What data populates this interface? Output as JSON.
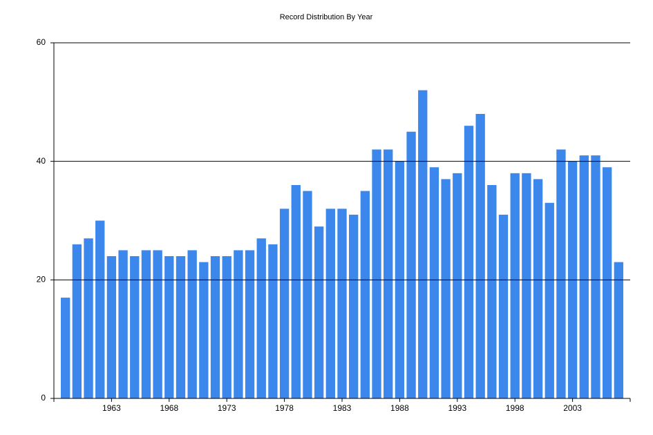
{
  "chart_data": {
    "type": "bar",
    "title": "Record Distribution By Year",
    "x": [
      1959,
      1960,
      1961,
      1962,
      1963,
      1964,
      1965,
      1966,
      1967,
      1968,
      1969,
      1970,
      1971,
      1972,
      1973,
      1974,
      1975,
      1976,
      1977,
      1978,
      1979,
      1980,
      1981,
      1982,
      1983,
      1984,
      1985,
      1986,
      1987,
      1988,
      1989,
      1990,
      1991,
      1992,
      1993,
      1994,
      1995,
      1996,
      1997,
      1998,
      1999,
      2000,
      2001,
      2002,
      2003,
      2004,
      2005,
      2006,
      2007
    ],
    "values": [
      17,
      26,
      27,
      30,
      24,
      25,
      24,
      25,
      25,
      24,
      24,
      25,
      23,
      24,
      24,
      25,
      25,
      27,
      26,
      32,
      36,
      35,
      29,
      32,
      32,
      31,
      35,
      42,
      42,
      40,
      45,
      52,
      39,
      37,
      38,
      46,
      48,
      36,
      31,
      38,
      38,
      37,
      33,
      42,
      40,
      41,
      41,
      39,
      23
    ],
    "color": "#3c87eb",
    "xlim": [
      1958,
      2008
    ],
    "xticks": [
      1963,
      1968,
      1973,
      1978,
      1983,
      1988,
      1993,
      1998,
      2003
    ],
    "ylim": [
      0,
      60
    ],
    "yticks": [
      0,
      20,
      40,
      60
    ],
    "grid": true
  }
}
